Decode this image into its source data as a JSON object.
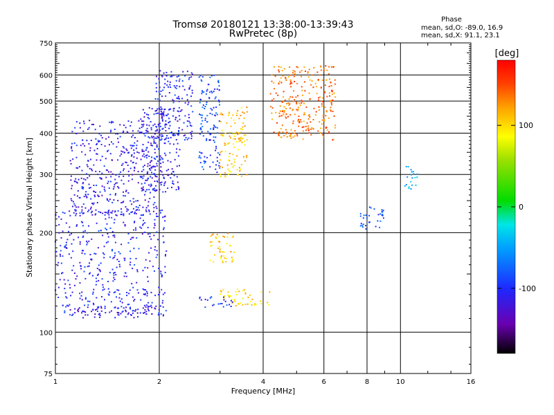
{
  "chart_data": {
    "type": "scatter",
    "title": "Tromsø 20180121 13:38:00-13:39:43",
    "subtitle": "RwPretec (8p)",
    "xlabel": "Frequency [MHz]",
    "ylabel": "Stationary phase Virtual Height [km]",
    "x_scale": "log",
    "y_scale": "log",
    "xlim": [
      1,
      16
    ],
    "ylim": [
      75,
      750
    ],
    "x_ticks": [
      "1",
      "2",
      "4",
      "6",
      "8",
      "10",
      "16"
    ],
    "y_ticks": [
      "75",
      "100",
      "200",
      "300",
      "400",
      "500",
      "600",
      "750"
    ],
    "grid": true,
    "phase_info": {
      "title": "Phase",
      "line1": "mean, sd,O: -89.0, 16.9",
      "line2": "mean, sd,X:  91.1, 23.1"
    },
    "colorbar": {
      "label": "[deg]",
      "range": [
        -180,
        180
      ],
      "ticks": [
        "100",
        "0",
        "-100"
      ]
    },
    "series": [
      {
        "region": "low-band blue echoes",
        "x_range": [
          1.0,
          2.1
        ],
        "y_range": [
          110,
          235
        ],
        "phase": -105
      },
      {
        "region": "lower blue boundary",
        "x_range": [
          1.05,
          2.0
        ],
        "y_range": [
          112,
          121
        ],
        "phase": -120
      },
      {
        "region": "low F-layer diffuse echoes",
        "x_range": [
          1.1,
          2.0
        ],
        "y_range": [
          225,
          440
        ],
        "phase": -110
      },
      {
        "region": "F-layer dense trace",
        "x_range": [
          1.75,
          2.3
        ],
        "y_range": [
          265,
          480
        ],
        "phase": -110
      },
      {
        "region": "upper F echoes",
        "x_range": [
          1.95,
          2.5
        ],
        "y_range": [
          380,
          620
        ],
        "phase": -105
      },
      {
        "region": "mid-band upper cluster",
        "x_range": [
          2.6,
          3.0
        ],
        "y_range": [
          300,
          600
        ],
        "phase": -90
      },
      {
        "region": "X-mode yellow cluster",
        "x_range": [
          3.0,
          3.6
        ],
        "y_range": [
          295,
          480
        ],
        "phase": 110
      },
      {
        "region": "yellow mid-height cluster",
        "x_range": [
          2.8,
          3.3
        ],
        "y_range": [
          160,
          200
        ],
        "phase": 105
      },
      {
        "region": "yellow lower trail",
        "x_range": [
          3.0,
          4.2
        ],
        "y_range": [
          120,
          135
        ],
        "phase": 100
      },
      {
        "region": "blue lower trail",
        "x_range": [
          2.6,
          3.3
        ],
        "y_range": [
          119,
          128
        ],
        "phase": -100
      },
      {
        "region": "scattered orange echoes",
        "x_range": [
          4.2,
          6.5
        ],
        "y_range": [
          380,
          640
        ],
        "phase": 135
      },
      {
        "region": "high-frequency cluster",
        "x_range": [
          7.6,
          9.0
        ],
        "y_range": [
          205,
          240
        ],
        "phase": -85
      },
      {
        "region": "high-frequency upper echoes",
        "x_range": [
          10.2,
          11.2
        ],
        "y_range": [
          270,
          320
        ],
        "phase": -40
      }
    ]
  }
}
